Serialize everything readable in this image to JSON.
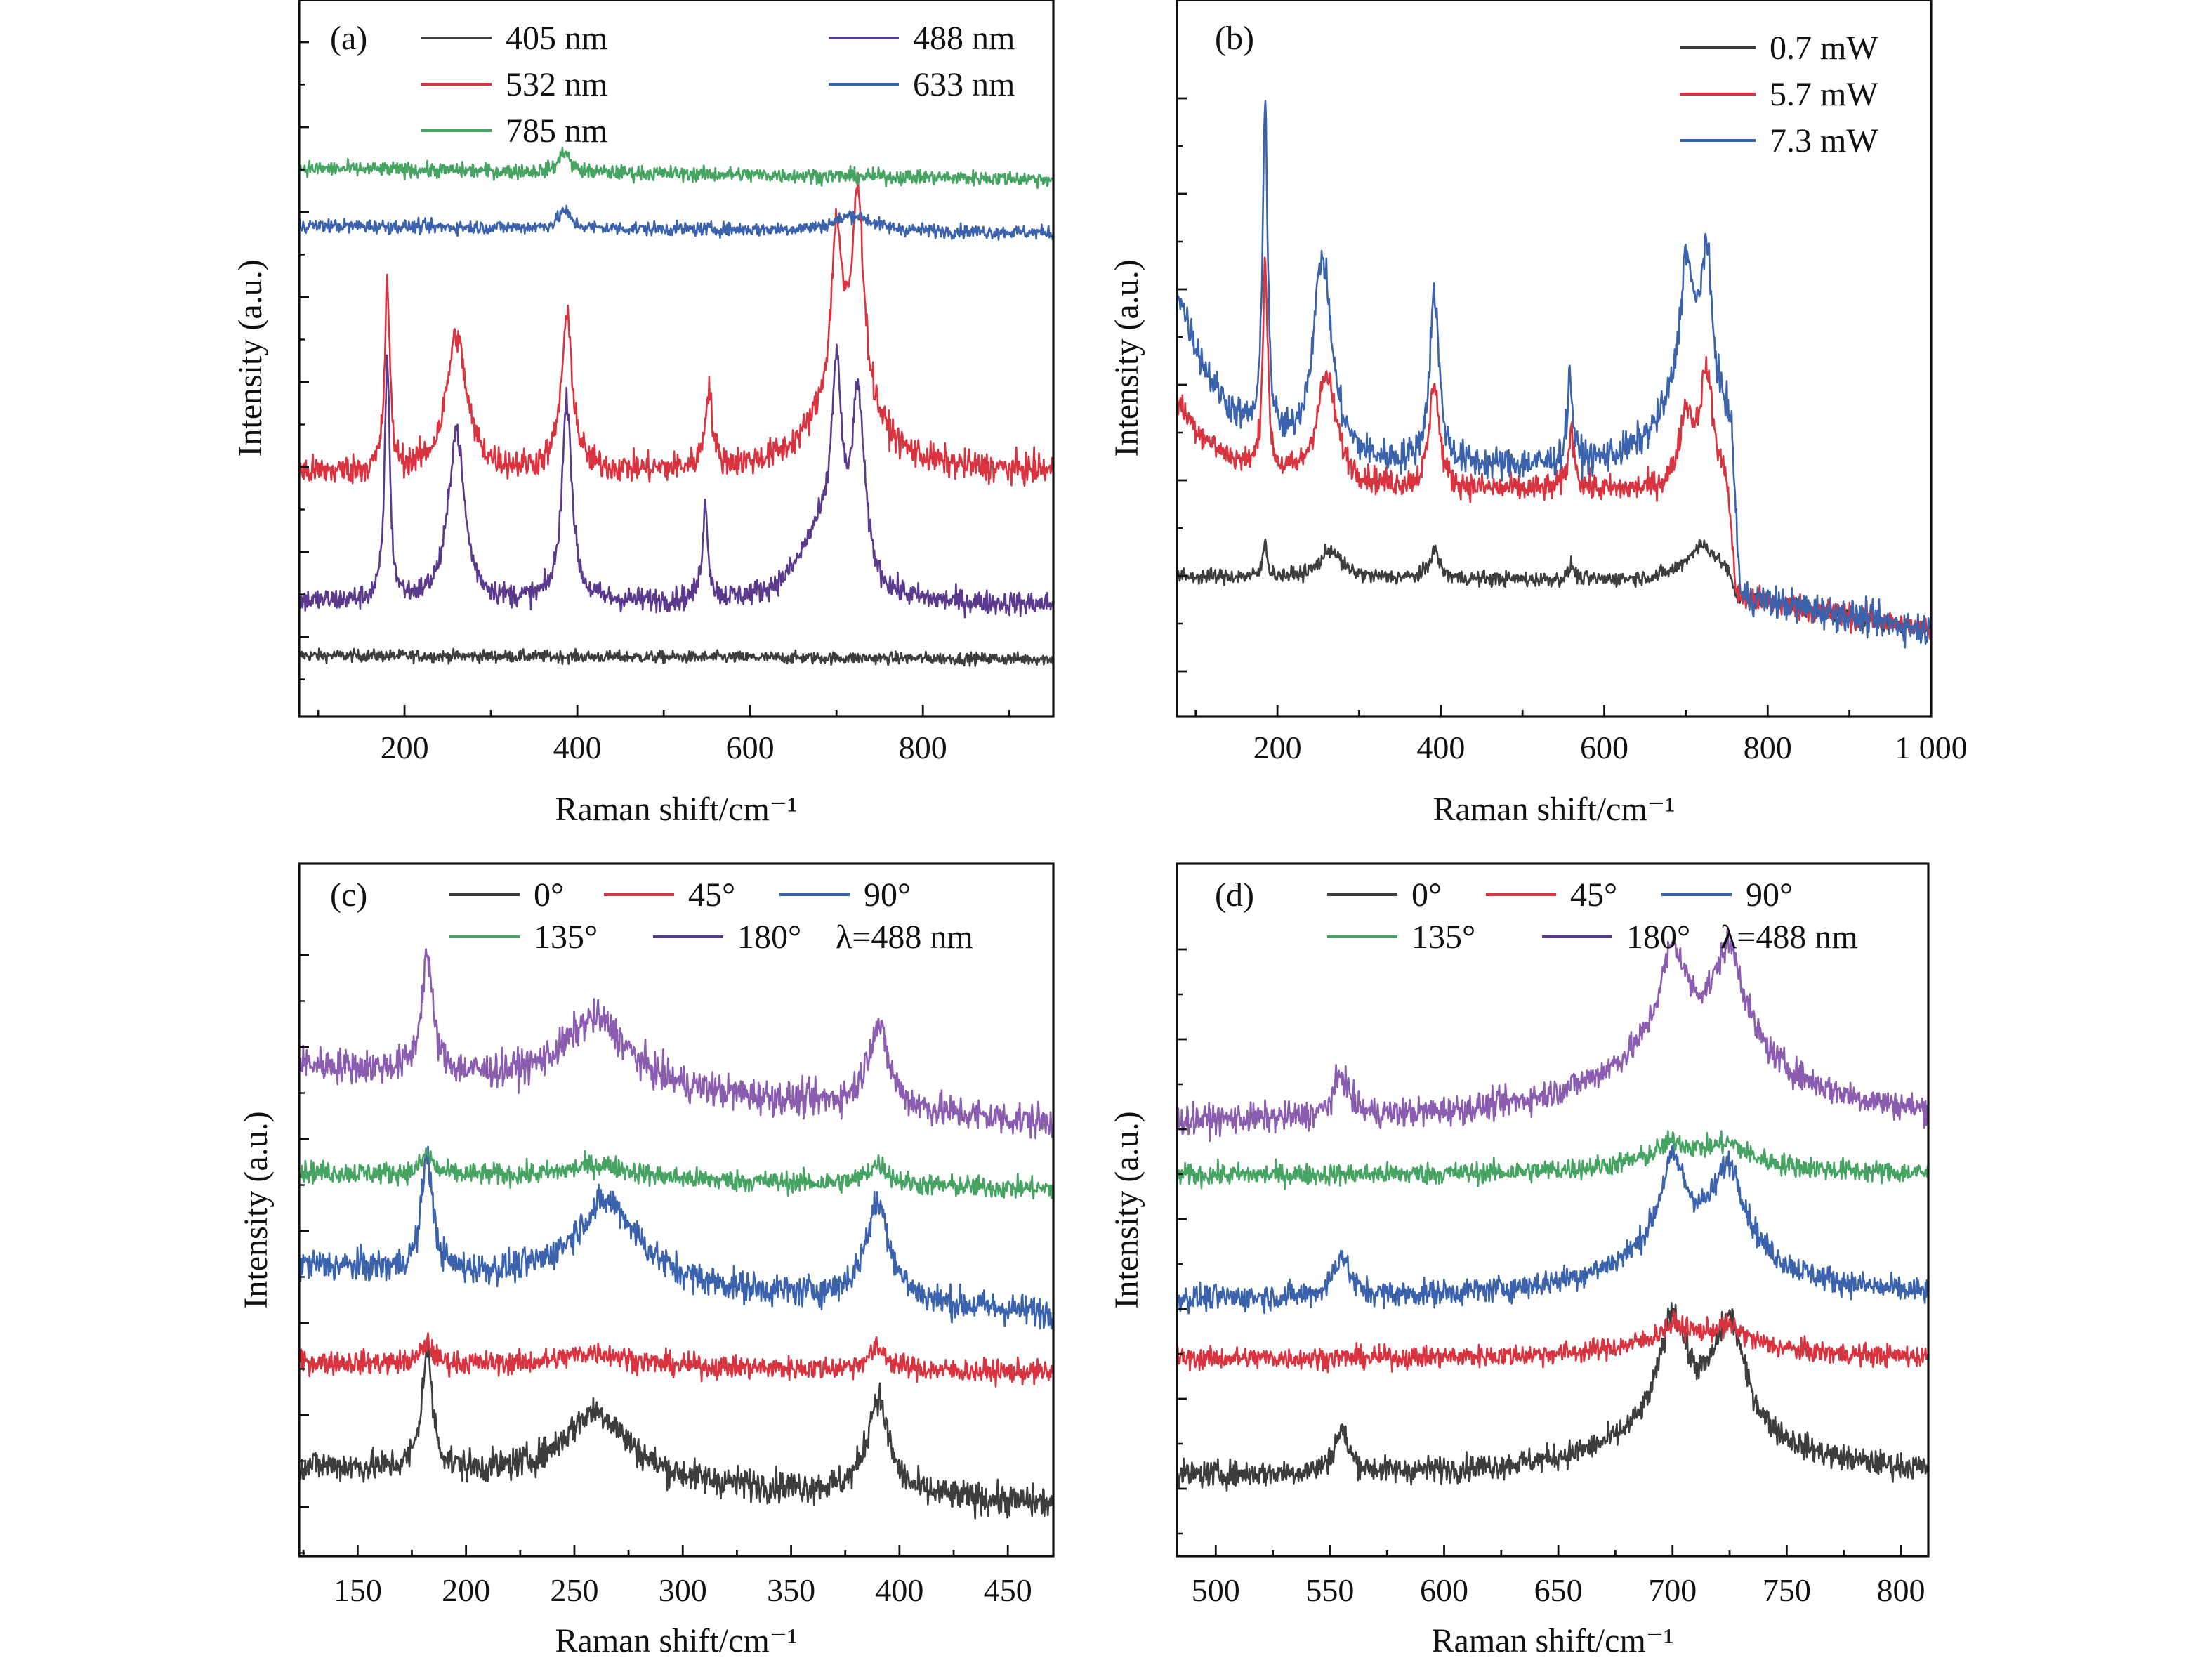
{
  "chart_data": [
    {
      "panel_label": "(a)",
      "type": "line",
      "xlabel": "Raman shift/cm⁻¹",
      "ylabel": "Intensity (a.u.)",
      "xlim": [
        78,
        951
      ],
      "ylim": [
        0,
        100
      ],
      "xticks": [
        200,
        400,
        600,
        800
      ],
      "xtick_labels": [
        "200",
        "400",
        "600",
        "800"
      ],
      "grid": false,
      "legend_placement": "top",
      "series": [
        {
          "name": "405 nm",
          "color": "#3d3d3d",
          "baseline": [
            8.5,
            8
          ],
          "noise": 0.8,
          "peaks": []
        },
        {
          "name": "488 nm",
          "color": "#5b3a8e",
          "baseline": [
            16,
            15.5
          ],
          "noise": 1.6,
          "peaks": [
            [
              180,
              34,
              3.5
            ],
            [
              260,
              24,
              11
            ],
            [
              388,
              28,
              7
            ],
            [
              548,
              13,
              4
            ],
            [
              680,
              9,
              30
            ],
            [
              700,
              26,
              7
            ],
            [
              725,
              26,
              9
            ]
          ]
        },
        {
          "name": "532 nm",
          "color": "#d8333f",
          "baseline": [
            34,
            34
          ],
          "noise": 2.0,
          "peaks": [
            [
              180,
              26,
              3.5
            ],
            [
              260,
              19,
              14
            ],
            [
              388,
              21,
              8
            ],
            [
              552,
              11,
              5
            ],
            [
              710,
              12,
              40
            ],
            [
              700,
              22,
              7
            ],
            [
              725,
              28,
              8
            ]
          ]
        },
        {
          "name": "633 nm",
          "color": "#3a62ad",
          "baseline": [
            68.5,
            67.5
          ],
          "noise": 0.9,
          "peaks": [
            [
              385,
              2.5,
              8
            ],
            [
              720,
              2.2,
              25
            ]
          ]
        },
        {
          "name": "785 nm",
          "color": "#46a463",
          "baseline": [
            76.5,
            75
          ],
          "noise": 1.0,
          "peaks": [
            [
              385,
              3,
              7
            ]
          ]
        }
      ]
    },
    {
      "panel_label": "(b)",
      "type": "line",
      "xlabel": "Raman shift/cm⁻¹",
      "ylabel": "Intensity (a.u.)",
      "xlim": [
        77,
        1000
      ],
      "ylim": [
        0,
        100
      ],
      "xticks": [
        200,
        400,
        600,
        800,
        1000
      ],
      "xtick_labels": [
        "200",
        "400",
        "600",
        "800",
        "1 000"
      ],
      "grid": false,
      "legend_placement": "top-right",
      "series": [
        {
          "name": "0.7 mW",
          "color": "#3d3d3d",
          "baseline": [
            19.5,
            18.5
          ],
          "noise": 1.0,
          "peaks": [
            [
              185,
              5,
              3
            ],
            [
              265,
              4,
              15
            ],
            [
              392,
              4,
              7
            ],
            [
              560,
              2,
              4
            ],
            [
              720,
              5,
              25
            ]
          ],
          "tail": {
            "from": 750,
            "values": [
              17,
              12
            ]
          }
        },
        {
          "name": "5.7 mW",
          "color": "#d8333f",
          "baseline": [
            32,
            31
          ],
          "noise": 1.8,
          "left_rise": [
            12,
            60
          ],
          "peaks": [
            [
              185,
              30,
              3.5
            ],
            [
              260,
              15,
              15
            ],
            [
              392,
              15,
              7
            ],
            [
              560,
              8,
              5
            ],
            [
              700,
              10,
              10
            ],
            [
              725,
              16,
              10
            ]
          ],
          "tail": {
            "from": 750,
            "values": [
              17,
              12
            ]
          }
        },
        {
          "name": "7.3 mW",
          "color": "#3a62ad",
          "baseline": [
            35,
            34
          ],
          "noise": 2.2,
          "left_rise": [
            25,
            55
          ],
          "peaks": [
            [
              185,
              48,
              3.5
            ],
            [
              255,
              28,
              14
            ],
            [
              392,
              24,
              7
            ],
            [
              558,
              12,
              4
            ],
            [
              710,
              14,
              40
            ],
            [
              700,
              16,
              8
            ],
            [
              725,
              18,
              8
            ]
          ],
          "tail": {
            "from": 755,
            "values": [
              17,
              12
            ]
          }
        }
      ]
    },
    {
      "panel_label": "(c)",
      "type": "line",
      "xlabel": "Raman shift/cm⁻¹",
      "ylabel": "Intensity (a.u.)",
      "xlim": [
        123,
        471
      ],
      "ylim": [
        0,
        100
      ],
      "xticks": [
        150,
        200,
        250,
        300,
        350,
        400,
        450
      ],
      "xtick_labels": [
        "150",
        "200",
        "250",
        "300",
        "350",
        "400",
        "450"
      ],
      "grid": false,
      "legend_placement": "top",
      "annotation": "λ=488 nm",
      "series": [
        {
          "name": "0°",
          "color": "#3d3d3d",
          "baseline": [
            13,
            7.5
          ],
          "noise": 2.2,
          "peaks": [
            [
              182,
              17,
              3
            ],
            [
              260,
              10,
              18
            ],
            [
              390,
              14,
              6
            ]
          ]
        },
        {
          "name": "45°",
          "color": "#d8333f",
          "baseline": [
            28,
            26.5
          ],
          "noise": 1.6,
          "peaks": [
            [
              182,
              3,
              3
            ],
            [
              260,
              2,
              18
            ],
            [
              390,
              3,
              6
            ]
          ]
        },
        {
          "name": "90°",
          "color": "#3a62ad",
          "baseline": [
            42,
            35
          ],
          "noise": 2.2,
          "peaks": [
            [
              182,
              17,
              3
            ],
            [
              265,
              12,
              18
            ],
            [
              390,
              14,
              7
            ]
          ]
        },
        {
          "name": "135°",
          "color": "#46a463",
          "baseline": [
            55.5,
            53
          ],
          "noise": 1.5,
          "peaks": [
            [
              182,
              3,
              3
            ],
            [
              262,
              2,
              18
            ],
            [
              390,
              3,
              6
            ]
          ]
        },
        {
          "name": "180°",
          "color": "#8b5db0",
          "legend_color": "#5b3a8e",
          "baseline": [
            71,
            62.5
          ],
          "noise": 2.4,
          "peaks": [
            [
              182,
              17,
              3
            ],
            [
              260,
              10,
              18
            ],
            [
              390,
              12,
              6
            ]
          ]
        }
      ]
    },
    {
      "panel_label": "(d)",
      "type": "line",
      "xlabel": "Raman shift/cm⁻¹",
      "ylabel": "Intensity (a.u.)",
      "xlim": [
        483,
        812
      ],
      "ylim": [
        0,
        100
      ],
      "xticks": [
        500,
        550,
        600,
        650,
        700,
        750,
        800
      ],
      "xtick_labels": [
        "500",
        "550",
        "600",
        "650",
        "700",
        "750",
        "800"
      ],
      "grid": false,
      "legend_placement": "top",
      "annotation": "λ=488 nm",
      "series": [
        {
          "name": "0°",
          "color": "#3d3d3d",
          "baseline": [
            11.5,
            11.5
          ],
          "noise": 1.8,
          "peaks": [
            [
              555,
              6,
              4
            ],
            [
              710,
              8,
              40
            ],
            [
              700,
              15,
              7
            ],
            [
              725,
              15,
              8
            ]
          ]
        },
        {
          "name": "45°",
          "color": "#d8333f",
          "baseline": [
            28.5,
            28.5
          ],
          "noise": 1.5,
          "peaks": [
            [
              710,
              3,
              35
            ],
            [
              700,
              2,
              7
            ],
            [
              725,
              2,
              8
            ]
          ]
        },
        {
          "name": "90°",
          "color": "#3a62ad",
          "baseline": [
            37,
            37
          ],
          "noise": 1.8,
          "peaks": [
            [
              555,
              6,
              4
            ],
            [
              710,
              8,
              40
            ],
            [
              700,
              12,
              7
            ],
            [
              725,
              12,
              8
            ]
          ]
        },
        {
          "name": "135°",
          "color": "#46a463",
          "baseline": [
            55,
            55
          ],
          "noise": 1.5,
          "peaks": [
            [
              710,
              3,
              35
            ],
            [
              700,
              2,
              7
            ],
            [
              725,
              2,
              8
            ]
          ]
        },
        {
          "name": "180°",
          "color": "#8b5db0",
          "legend_color": "#5b3a8e",
          "baseline": [
            62.5,
            62.5
          ],
          "noise": 2.0,
          "peaks": [
            [
              555,
              6,
              4
            ],
            [
              710,
              12,
              45
            ],
            [
              700,
              13,
              7
            ],
            [
              725,
              14,
              8
            ]
          ]
        }
      ]
    }
  ]
}
